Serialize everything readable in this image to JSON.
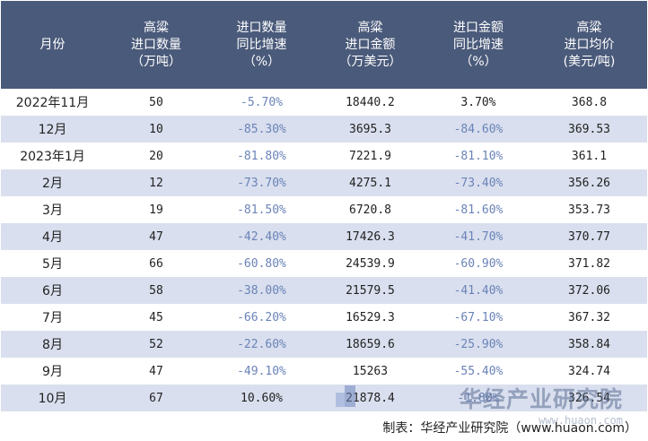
{
  "header": {
    "col1": [
      "月份"
    ],
    "col2": [
      "高粱",
      "进口数量",
      "（万吨）"
    ],
    "col3": [
      "进口数量",
      "同比增速",
      "（%）"
    ],
    "col4": [
      "高粱",
      "进口金额",
      "（万美元）"
    ],
    "col5": [
      "进口金额",
      "同比增速",
      "（%）"
    ],
    "col6": [
      "高粱",
      "进口均价",
      "(美元/吨)"
    ]
  },
  "rows": [
    {
      "month": "2022年11月",
      "qty": "50",
      "qty_yoy": "-5.70%",
      "amount": "18440.2",
      "amount_yoy": "3.70%",
      "price": "368.8"
    },
    {
      "month": "12月",
      "qty": "10",
      "qty_yoy": "-85.30%",
      "amount": "3695.3",
      "amount_yoy": "-84.60%",
      "price": "369.53"
    },
    {
      "month": "2023年1月",
      "qty": "20",
      "qty_yoy": "-81.80%",
      "amount": "7221.9",
      "amount_yoy": "-81.10%",
      "price": "361.1"
    },
    {
      "month": "2月",
      "qty": "12",
      "qty_yoy": "-73.70%",
      "amount": "4275.1",
      "amount_yoy": "-73.40%",
      "price": "356.26"
    },
    {
      "month": "3月",
      "qty": "19",
      "qty_yoy": "-81.50%",
      "amount": "6720.8",
      "amount_yoy": "-81.60%",
      "price": "353.73"
    },
    {
      "month": "4月",
      "qty": "47",
      "qty_yoy": "-42.40%",
      "amount": "17426.3",
      "amount_yoy": "-41.70%",
      "price": "370.77"
    },
    {
      "month": "5月",
      "qty": "66",
      "qty_yoy": "-60.80%",
      "amount": "24539.9",
      "amount_yoy": "-60.90%",
      "price": "371.82"
    },
    {
      "month": "6月",
      "qty": "58",
      "qty_yoy": "-38.00%",
      "amount": "21579.5",
      "amount_yoy": "-41.40%",
      "price": "372.06"
    },
    {
      "month": "7月",
      "qty": "45",
      "qty_yoy": "-66.20%",
      "amount": "16529.3",
      "amount_yoy": "-67.10%",
      "price": "367.32"
    },
    {
      "month": "8月",
      "qty": "52",
      "qty_yoy": "-22.60%",
      "amount": "18659.6",
      "amount_yoy": "-25.90%",
      "price": "358.84"
    },
    {
      "month": "9月",
      "qty": "47",
      "qty_yoy": "-49.10%",
      "amount": "15263",
      "amount_yoy": "-55.40%",
      "price": "324.74"
    },
    {
      "month": "10月",
      "qty": "67",
      "qty_yoy": "10.60%",
      "amount": "21878.4",
      "amount_yoy": "-1.80%",
      "price": "326.54"
    }
  ],
  "footer": "制表：华经产业研究院（www.huaon.com）",
  "watermark": {
    "name": "华经产业研究院",
    "url": "www.huaon.com"
  },
  "colors": {
    "header_bg": "#4a5a7a",
    "stripe_bg": "#d9dfee",
    "negative_text": "#6a83b8"
  }
}
